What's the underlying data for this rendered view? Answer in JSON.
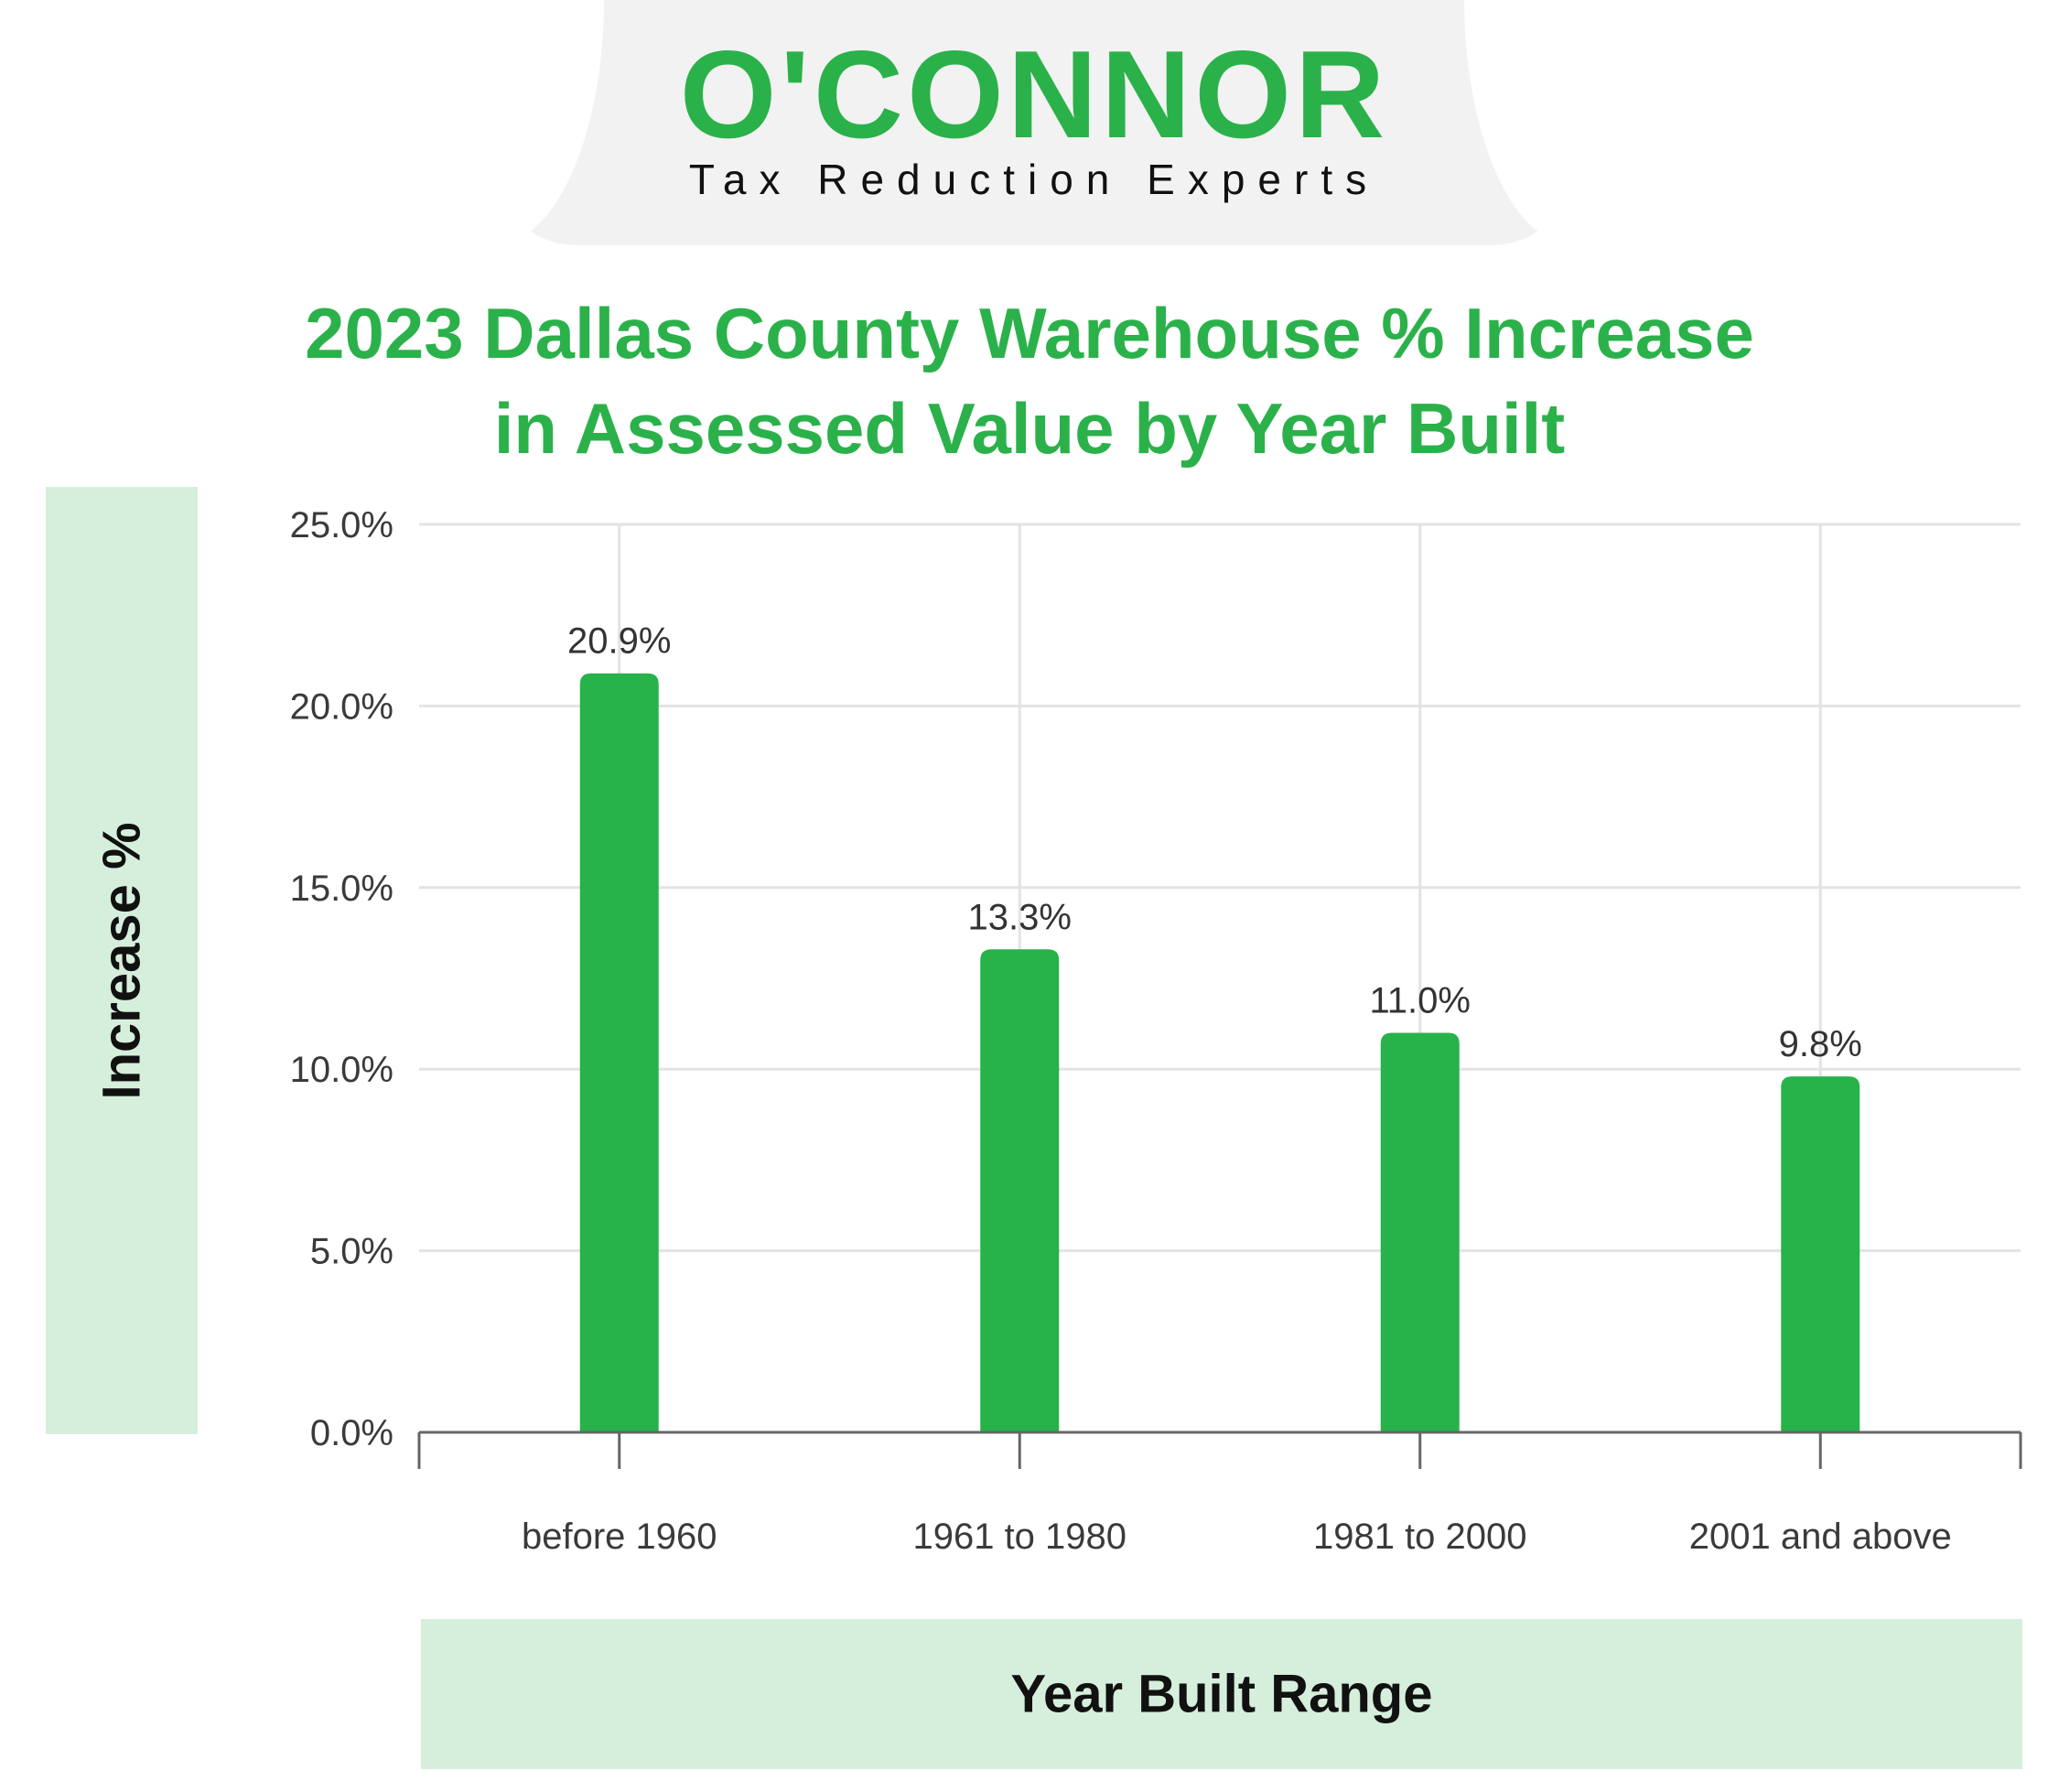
{
  "logo": {
    "name": "O'CONNOR",
    "tagline": "Tax Reduction Experts"
  },
  "colors": {
    "brand_green": "#2bb14a",
    "bar_green": "#27b24a",
    "label_box": "#d6efdc",
    "gridline": "#e3e3e3",
    "axis": "#666666"
  },
  "chart_data": {
    "type": "bar",
    "title": "2023 Dallas County Warehouse % Increase\nin Assessed Value by Year Built",
    "xlabel": "Year Built Range",
    "ylabel": "Increase %",
    "categories": [
      "before 1960",
      "1961 to 1980",
      "1981 to 2000",
      "2001 and above"
    ],
    "series": [
      {
        "values": [
          20.9,
          13.3,
          11.0,
          9.8
        ],
        "labels": [
          "20.9%",
          "13.3%",
          "11.0%",
          "9.8%"
        ]
      }
    ],
    "ylim": [
      0,
      25
    ],
    "yticks": [
      0,
      5,
      10,
      15,
      20,
      25
    ],
    "ytick_labels": [
      "0.0%",
      "5.0%",
      "10.0%",
      "15.0%",
      "20.0%",
      "25.0%"
    ],
    "grid": true,
    "legend": "none"
  }
}
